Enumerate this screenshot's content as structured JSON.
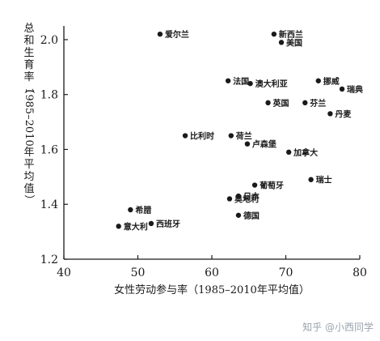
{
  "chart_data": {
    "type": "scatter",
    "title": "",
    "xlabel": "女性劳动参与率（1985–2010年平均值）",
    "ylabel": "总和生育率（1985–2010年平均值）",
    "xlim": [
      40,
      80
    ],
    "ylim": [
      1.2,
      2.05
    ],
    "x_ticks": [
      "40",
      "50",
      "60",
      "70",
      "80"
    ],
    "y_ticks": [
      "1.2",
      "1.4",
      "1.6",
      "1.8",
      "2.0"
    ],
    "x_tick_values": [
      40,
      50,
      60,
      70,
      80
    ],
    "y_tick_values": [
      1.2,
      1.4,
      1.6,
      1.8,
      2.0
    ],
    "grid": false,
    "points": [
      {
        "label": "爱尔兰",
        "x": 53.0,
        "y": 2.02
      },
      {
        "label": "新西兰",
        "x": 68.4,
        "y": 2.02
      },
      {
        "label": "美国",
        "x": 69.4,
        "y": 1.99
      },
      {
        "label": "法国",
        "x": 62.2,
        "y": 1.85
      },
      {
        "label": "澳大利亚",
        "x": 65.2,
        "y": 1.84
      },
      {
        "label": "挪威",
        "x": 74.4,
        "y": 1.85
      },
      {
        "label": "瑞典",
        "x": 77.6,
        "y": 1.82
      },
      {
        "label": "英国",
        "x": 67.6,
        "y": 1.77
      },
      {
        "label": "芬兰",
        "x": 72.6,
        "y": 1.77
      },
      {
        "label": "丹麦",
        "x": 76.0,
        "y": 1.73
      },
      {
        "label": "比利时",
        "x": 56.4,
        "y": 1.65
      },
      {
        "label": "荷兰",
        "x": 62.6,
        "y": 1.65
      },
      {
        "label": "卢森堡",
        "x": 64.8,
        "y": 1.62
      },
      {
        "label": "加拿大",
        "x": 70.4,
        "y": 1.59
      },
      {
        "label": "瑞士",
        "x": 73.4,
        "y": 1.49
      },
      {
        "label": "葡萄牙",
        "x": 65.8,
        "y": 1.47
      },
      {
        "label": "日本",
        "x": 63.6,
        "y": 1.43
      },
      {
        "label": "奥地利",
        "x": 62.4,
        "y": 1.42
      },
      {
        "label": "希腊",
        "x": 49.0,
        "y": 1.38
      },
      {
        "label": "德国",
        "x": 63.6,
        "y": 1.36
      },
      {
        "label": "西班牙",
        "x": 51.8,
        "y": 1.33
      },
      {
        "label": "意大利",
        "x": 47.4,
        "y": 1.32
      }
    ]
  },
  "watermark": "知乎 @小西同学",
  "colors": {
    "ink": "#1a1a1a",
    "watermark": "#9aa3ad",
    "background": "#ffffff"
  }
}
